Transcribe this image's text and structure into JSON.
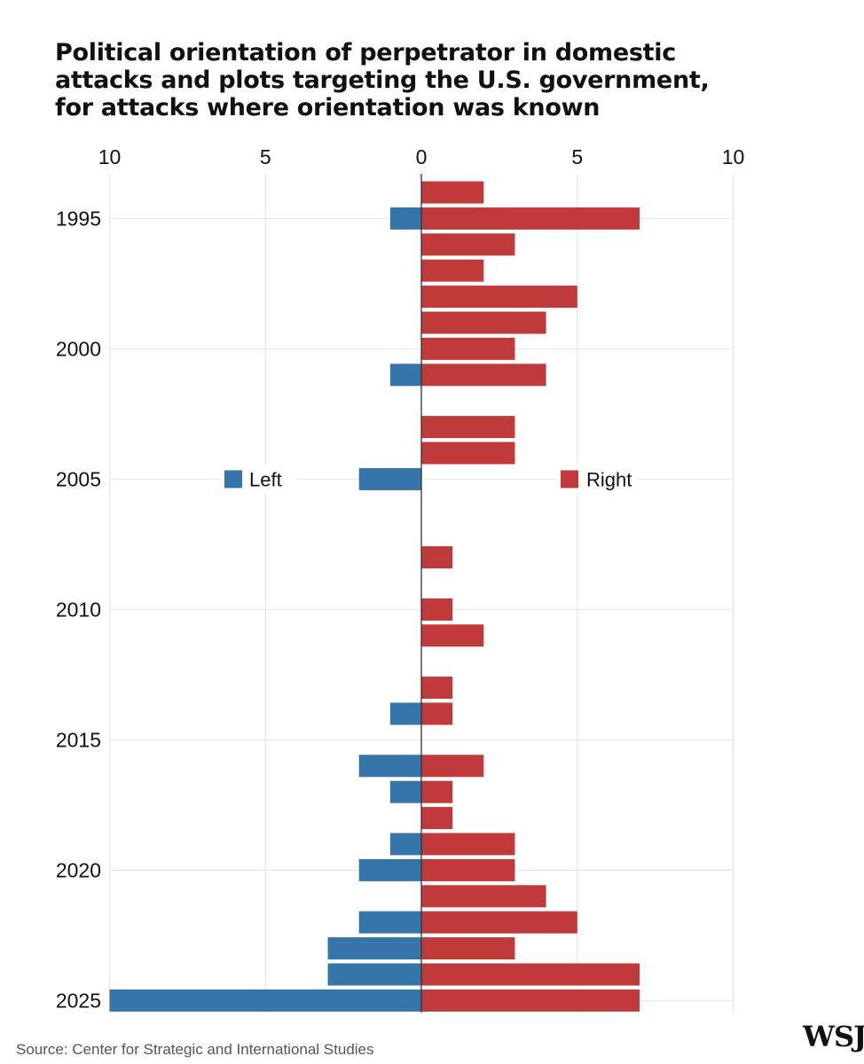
{
  "title_lines": [
    "Political orientation of perpetrator in domestic",
    "attacks and plots targeting the U.S. government,",
    "for attacks where orientation was known"
  ],
  "source": "Source: Center for Strategic and International Studies",
  "logo_text": "WSJ",
  "colors": {
    "left": "#3575a9",
    "right": "#c0393b",
    "grid": "#e4e4e4",
    "axis": "#333333"
  },
  "chart_data": {
    "type": "bar",
    "orientation": "horizontal-diverging",
    "title": "Political orientation of perpetrator in domestic attacks and plots targeting the U.S. government, for attacks where orientation was known",
    "x_ticks": [
      {
        "value": -10,
        "label": "10"
      },
      {
        "value": -5,
        "label": "5"
      },
      {
        "value": 0,
        "label": "0"
      },
      {
        "value": 5,
        "label": "5"
      },
      {
        "value": 10,
        "label": "10"
      }
    ],
    "xlim": [
      -10,
      10
    ],
    "ylim": [
      1994,
      2025
    ],
    "y_ticks": [
      1995,
      2000,
      2005,
      2010,
      2015,
      2020,
      2025
    ],
    "grid": true,
    "legend": {
      "position": "middle",
      "entries": [
        "Left",
        "Right"
      ]
    },
    "categories": [
      1994,
      1995,
      1996,
      1997,
      1998,
      1999,
      2000,
      2001,
      2002,
      2003,
      2004,
      2005,
      2006,
      2007,
      2008,
      2009,
      2010,
      2011,
      2012,
      2013,
      2014,
      2015,
      2016,
      2017,
      2018,
      2019,
      2020,
      2021,
      2022,
      2023,
      2024,
      2025
    ],
    "series": [
      {
        "name": "Left",
        "values": [
          0,
          1,
          0,
          0,
          0,
          0,
          0,
          1,
          0,
          0,
          0,
          2,
          0,
          0,
          0,
          0,
          0,
          0,
          0,
          0,
          1,
          0,
          2,
          1,
          0,
          1,
          2,
          0,
          2,
          3,
          3,
          10
        ]
      },
      {
        "name": "Right",
        "values": [
          2,
          7,
          3,
          2,
          5,
          4,
          3,
          4,
          0,
          3,
          3,
          0,
          0,
          0,
          1,
          0,
          1,
          2,
          0,
          1,
          1,
          0,
          2,
          1,
          1,
          3,
          3,
          4,
          5,
          3,
          7,
          7
        ]
      }
    ]
  }
}
